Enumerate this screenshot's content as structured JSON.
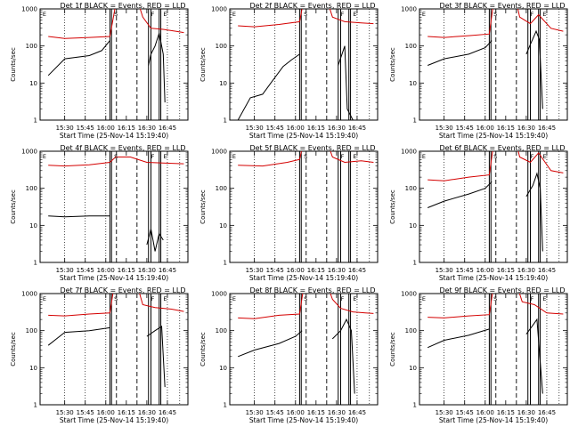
{
  "chart_data": [
    {
      "type": "line",
      "title": "Det 1f BLACK = Events, RED = LLD",
      "ylabel": "Counts/sec",
      "xlabel": "Start Time (25-Nov-14 15:19:40)",
      "xticks": [
        "15:30",
        "15:45",
        "16:00",
        "16:15",
        "16:30",
        "16:45"
      ],
      "yticks": [
        "1",
        "10",
        "100",
        "1000"
      ],
      "ylim": [
        1,
        1000
      ],
      "yscale": "log",
      "markers": [
        "E",
        "S",
        "F",
        "E"
      ],
      "series": [
        {
          "name": "BLACK = Events",
          "color": "#000000",
          "points": [
            [
              15.3,
              16
            ],
            [
              15.5,
              45
            ],
            [
              15.8,
              55
            ],
            [
              15.95,
              75
            ],
            [
              16.05,
              140
            ],
            [
              16.1,
              "gap"
            ],
            [
              16.52,
              30
            ],
            [
              16.55,
              60
            ],
            [
              16.6,
              100
            ],
            [
              16.65,
              220
            ],
            [
              16.7,
              60
            ],
            [
              16.72,
              3
            ]
          ]
        },
        {
          "name": "RED = LLD",
          "color": "#d40000",
          "points": [
            [
              15.3,
              180
            ],
            [
              15.5,
              160
            ],
            [
              15.8,
              170
            ],
            [
              16.05,
              180
            ],
            [
              16.15,
              3000
            ],
            [
              16.35,
              3000
            ],
            [
              16.45,
              600
            ],
            [
              16.55,
              300
            ],
            [
              16.7,
              280
            ],
            [
              16.85,
              250
            ],
            [
              16.95,
              230
            ]
          ]
        }
      ]
    },
    {
      "type": "line",
      "title": "Det 2f BLACK = Events, RED = LLD",
      "ylabel": "Counts/sec",
      "xlabel": "Start Time (25-Nov-14 15:19:40)",
      "xticks": [
        "15:30",
        "15:45",
        "16:00",
        "16:15",
        "16:30",
        "16:45"
      ],
      "yticks": [
        "1",
        "10",
        "100",
        "1000"
      ],
      "ylim": [
        1,
        1000
      ],
      "yscale": "log",
      "markers": [
        "E",
        "S",
        "F",
        "E"
      ],
      "series": [
        {
          "name": "BLACK = Events",
          "color": "#000000",
          "points": [
            [
              15.3,
              1
            ],
            [
              15.45,
              4
            ],
            [
              15.6,
              5
            ],
            [
              15.7,
              10
            ],
            [
              15.85,
              28
            ],
            [
              15.95,
              42
            ],
            [
              16.05,
              60
            ],
            [
              16.1,
              "gap"
            ],
            [
              16.52,
              30
            ],
            [
              16.6,
              100
            ],
            [
              16.63,
              2
            ],
            [
              16.7,
              1
            ]
          ]
        },
        {
          "name": "RED = LLD",
          "color": "#d40000",
          "points": [
            [
              15.3,
              350
            ],
            [
              15.5,
              330
            ],
            [
              15.8,
              380
            ],
            [
              16.05,
              450
            ],
            [
              16.12,
              3000
            ],
            [
              16.35,
              3000
            ],
            [
              16.45,
              600
            ],
            [
              16.6,
              450
            ],
            [
              16.8,
              420
            ],
            [
              16.95,
              400
            ]
          ]
        }
      ]
    },
    {
      "type": "line",
      "title": "Det 3f BLACK = Events, RED = LLD",
      "ylabel": "Counts/sec",
      "xlabel": "Start Time (25-Nov-14 15:19:40)",
      "xticks": [
        "15:30",
        "15:45",
        "16:00",
        "16:15",
        "16:30",
        "16:45"
      ],
      "yticks": [
        "1",
        "10",
        "100",
        "1000"
      ],
      "ylim": [
        1,
        1000
      ],
      "yscale": "log",
      "markers": [
        "E",
        "S",
        "F",
        "E"
      ],
      "series": [
        {
          "name": "BLACK = Events",
          "color": "#000000",
          "points": [
            [
              15.3,
              30
            ],
            [
              15.5,
              45
            ],
            [
              15.8,
              60
            ],
            [
              16.0,
              90
            ],
            [
              16.08,
              140
            ],
            [
              16.1,
              "gap"
            ],
            [
              16.5,
              60
            ],
            [
              16.55,
              110
            ],
            [
              16.62,
              250
            ],
            [
              16.66,
              150
            ],
            [
              16.7,
              2
            ]
          ]
        },
        {
          "name": "RED = LLD",
          "color": "#d40000",
          "points": [
            [
              15.3,
              180
            ],
            [
              15.5,
              170
            ],
            [
              15.8,
              190
            ],
            [
              16.05,
              210
            ],
            [
              16.12,
              3000
            ],
            [
              16.35,
              3000
            ],
            [
              16.42,
              600
            ],
            [
              16.55,
              400
            ],
            [
              16.65,
              700
            ],
            [
              16.8,
              300
            ],
            [
              16.95,
              250
            ]
          ]
        }
      ]
    },
    {
      "type": "line",
      "title": "Det 4f BLACK = Events, RED = LLD",
      "ylabel": "Counts/sec",
      "xlabel": "Start Time (25-Nov-14 15:19:40)",
      "xticks": [
        "15:30",
        "15:45",
        "16:00",
        "16:15",
        "16:30",
        "16:45"
      ],
      "yticks": [
        "1",
        "10",
        "100",
        "1000"
      ],
      "ylim": [
        1,
        1000
      ],
      "yscale": "log",
      "markers": [
        "E",
        "S",
        "F",
        "E"
      ],
      "series": [
        {
          "name": "BLACK = Events",
          "color": "#000000",
          "points": [
            [
              15.3,
              18
            ],
            [
              15.5,
              17
            ],
            [
              15.8,
              18
            ],
            [
              16.05,
              18
            ],
            [
              16.1,
              "gap"
            ],
            [
              16.5,
              3
            ],
            [
              16.55,
              8
            ],
            [
              16.6,
              2
            ],
            [
              16.65,
              6
            ],
            [
              16.7,
              4
            ]
          ]
        },
        {
          "name": "RED = LLD",
          "color": "#d40000",
          "points": [
            [
              15.3,
              420
            ],
            [
              15.5,
              400
            ],
            [
              15.8,
              430
            ],
            [
              16.05,
              500
            ],
            [
              16.12,
              700
            ],
            [
              16.3,
              700
            ],
            [
              16.5,
              500
            ],
            [
              16.7,
              480
            ],
            [
              16.95,
              460
            ]
          ]
        }
      ]
    },
    {
      "type": "line",
      "title": "Det 5f BLACK = Events, RED = LLD",
      "ylabel": "Counts/sec",
      "xlabel": "Start Time (25-Nov-14 15:19:40)",
      "xticks": [
        "15:30",
        "15:45",
        "16:00",
        "16:15",
        "16:30",
        "16:45"
      ],
      "yticks": [
        "1",
        "10",
        "100",
        "1000"
      ],
      "ylim": [
        1,
        1000
      ],
      "yscale": "log",
      "markers": [
        "E",
        "S",
        "F",
        "E"
      ],
      "series": [
        {
          "name": "BLACK = Events",
          "color": "#000000",
          "points": [
            [
              15.85,
              "gap"
            ],
            [
              16.55,
              1
            ]
          ]
        },
        {
          "name": "RED = LLD",
          "color": "#d40000",
          "points": [
            [
              15.3,
              420
            ],
            [
              15.6,
              400
            ],
            [
              15.9,
              500
            ],
            [
              16.05,
              600
            ],
            [
              16.12,
              3000
            ],
            [
              16.35,
              3000
            ],
            [
              16.45,
              700
            ],
            [
              16.6,
              500
            ],
            [
              16.8,
              550
            ],
            [
              16.95,
              500
            ]
          ]
        }
      ]
    },
    {
      "type": "line",
      "title": "Det 6f BLACK = Events, RED = LLD",
      "ylabel": "Counts/sec",
      "xlabel": "Start Time (25-Nov-14 15:19:40)",
      "xticks": [
        "15:30",
        "15:45",
        "16:00",
        "16:15",
        "16:30",
        "16:45"
      ],
      "yticks": [
        "1",
        "10",
        "100",
        "1000"
      ],
      "ylim": [
        1,
        1000
      ],
      "yscale": "log",
      "markers": [
        "E",
        "S",
        "F",
        "E"
      ],
      "series": [
        {
          "name": "BLACK = Events",
          "color": "#000000",
          "points": [
            [
              15.3,
              30
            ],
            [
              15.5,
              45
            ],
            [
              15.8,
              70
            ],
            [
              16.0,
              100
            ],
            [
              16.08,
              150
            ],
            [
              16.1,
              "gap"
            ],
            [
              16.5,
              60
            ],
            [
              16.58,
              120
            ],
            [
              16.63,
              250
            ],
            [
              16.67,
              100
            ],
            [
              16.7,
              2
            ]
          ]
        },
        {
          "name": "RED = LLD",
          "color": "#d40000",
          "points": [
            [
              15.3,
              170
            ],
            [
              15.5,
              160
            ],
            [
              15.8,
              200
            ],
            [
              16.05,
              230
            ],
            [
              16.12,
              3000
            ],
            [
              16.35,
              3000
            ],
            [
              16.42,
              700
            ],
            [
              16.55,
              500
            ],
            [
              16.65,
              900
            ],
            [
              16.8,
              300
            ],
            [
              16.95,
              260
            ]
          ]
        }
      ]
    },
    {
      "type": "line",
      "title": "Det 7f BLACK = Events, RED = LLD",
      "ylabel": "Counts/sec",
      "xlabel": "Start Time (25-Nov-14 15:19:40)",
      "xticks": [
        "15:30",
        "15:45",
        "16:00",
        "16:15",
        "16:30",
        "16:45"
      ],
      "yticks": [
        "1",
        "10",
        "100",
        "1000"
      ],
      "ylim": [
        1,
        1000
      ],
      "yscale": "log",
      "markers": [
        "E",
        "S",
        "F",
        "E"
      ],
      "series": [
        {
          "name": "BLACK = Events",
          "color": "#000000",
          "points": [
            [
              15.3,
              40
            ],
            [
              15.5,
              90
            ],
            [
              15.8,
              100
            ],
            [
              16.05,
              120
            ],
            [
              16.1,
              "gap"
            ],
            [
              16.5,
              70
            ],
            [
              16.6,
              100
            ],
            [
              16.68,
              130
            ],
            [
              16.72,
              3
            ]
          ]
        },
        {
          "name": "RED = LLD",
          "color": "#d40000",
          "points": [
            [
              15.3,
              260
            ],
            [
              15.5,
              250
            ],
            [
              15.8,
              280
            ],
            [
              16.05,
              300
            ],
            [
              16.12,
              3000
            ],
            [
              16.35,
              3000
            ],
            [
              16.45,
              500
            ],
            [
              16.6,
              420
            ],
            [
              16.8,
              380
            ],
            [
              16.95,
              330
            ]
          ]
        }
      ]
    },
    {
      "type": "line",
      "title": "Det 8f BLACK = Events, RED = LLD",
      "ylabel": "Counts/sec",
      "xlabel": "Start Time (25-Nov-14 15:19:40)",
      "xticks": [
        "15:30",
        "15:45",
        "16:00",
        "16:15",
        "16:30",
        "16:45"
      ],
      "yticks": [
        "1",
        "10",
        "100",
        "1000"
      ],
      "ylim": [
        1,
        1000
      ],
      "yscale": "log",
      "markers": [
        "E",
        "S",
        "F",
        "E"
      ],
      "series": [
        {
          "name": "BLACK = Events",
          "color": "#000000",
          "points": [
            [
              15.3,
              20
            ],
            [
              15.5,
              30
            ],
            [
              15.8,
              45
            ],
            [
              16.0,
              70
            ],
            [
              16.08,
              100
            ],
            [
              16.1,
              "gap"
            ],
            [
              16.45,
              60
            ],
            [
              16.55,
              100
            ],
            [
              16.62,
              200
            ],
            [
              16.68,
              100
            ],
            [
              16.72,
              2
            ]
          ]
        },
        {
          "name": "RED = LLD",
          "color": "#d40000",
          "points": [
            [
              15.3,
              220
            ],
            [
              15.5,
              210
            ],
            [
              15.8,
              260
            ],
            [
              16.05,
              280
            ],
            [
              16.12,
              3000
            ],
            [
              16.35,
              3000
            ],
            [
              16.45,
              700
            ],
            [
              16.55,
              400
            ],
            [
              16.7,
              320
            ],
            [
              16.85,
              300
            ],
            [
              16.95,
              290
            ]
          ]
        }
      ]
    },
    {
      "type": "line",
      "title": "Det 9f BLACK = Events, RED = LLD",
      "ylabel": "Counts/sec",
      "xlabel": "Start Time (25-Nov-14 15:19:40)",
      "xticks": [
        "15:30",
        "15:45",
        "16:00",
        "16:15",
        "16:30",
        "16:45"
      ],
      "yticks": [
        "1",
        "10",
        "100",
        "1000"
      ],
      "ylim": [
        1,
        1000
      ],
      "yscale": "log",
      "markers": [
        "E",
        "S",
        "F",
        "E"
      ],
      "series": [
        {
          "name": "BLACK = Events",
          "color": "#000000",
          "points": [
            [
              15.3,
              35
            ],
            [
              15.5,
              55
            ],
            [
              15.8,
              75
            ],
            [
              16.05,
              110
            ],
            [
              16.1,
              "gap"
            ],
            [
              16.5,
              80
            ],
            [
              16.58,
              140
            ],
            [
              16.63,
              200
            ],
            [
              16.7,
              2
            ]
          ]
        },
        {
          "name": "RED = LLD",
          "color": "#d40000",
          "points": [
            [
              15.3,
              230
            ],
            [
              15.5,
              220
            ],
            [
              15.8,
              250
            ],
            [
              16.05,
              270
            ],
            [
              16.12,
              3000
            ],
            [
              16.35,
              3000
            ],
            [
              16.45,
              600
            ],
            [
              16.6,
              500
            ],
            [
              16.75,
              300
            ],
            [
              16.95,
              280
            ]
          ]
        }
      ]
    }
  ]
}
